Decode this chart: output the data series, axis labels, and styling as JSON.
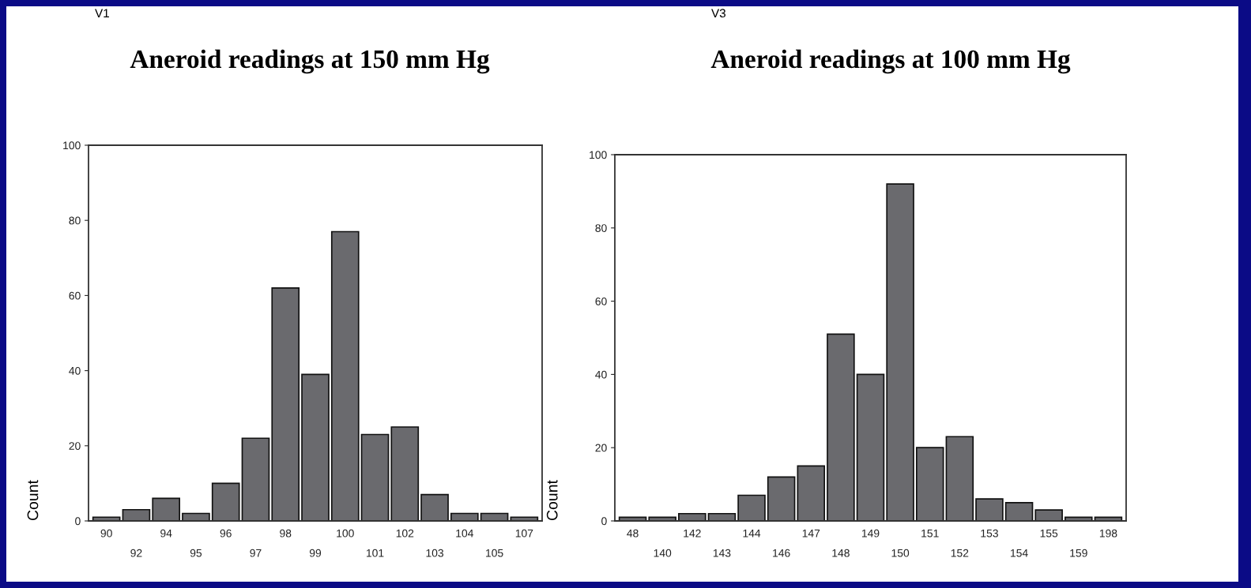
{
  "chart_data": [
    {
      "type": "bar",
      "title": "Aneroid readings at 150 mm Hg",
      "annotations": [
        "V1"
      ],
      "ylabel": "Count",
      "color": "#6a6a6e",
      "categories": [
        "90",
        "92",
        "94",
        "95",
        "96",
        "97",
        "98",
        "99",
        "100",
        "101",
        "102",
        "103",
        "104",
        "105",
        "107"
      ],
      "values": [
        1,
        3,
        6,
        2,
        10,
        22,
        62,
        39,
        77,
        23,
        25,
        7,
        2,
        2,
        1
      ],
      "ylim": [
        0,
        100
      ],
      "yticks": [
        0,
        20,
        40,
        60,
        80,
        100
      ],
      "grid": false,
      "legend": false
    },
    {
      "type": "bar",
      "title": "Aneroid readings at 100 mm Hg",
      "annotations": [
        "V3"
      ],
      "ylabel": "Count",
      "color": "#6a6a6e",
      "categories": [
        "48",
        "140",
        "142",
        "143",
        "144",
        "146",
        "147",
        "148",
        "149",
        "150",
        "151",
        "152",
        "153",
        "154",
        "155",
        "159",
        "198"
      ],
      "values": [
        1,
        1,
        2,
        2,
        7,
        12,
        15,
        51,
        40,
        92,
        20,
        23,
        6,
        5,
        3,
        1,
        1
      ],
      "ylim": [
        0,
        100
      ],
      "yticks": [
        0,
        20,
        40,
        60,
        80,
        100
      ],
      "grid": false,
      "legend": false
    }
  ]
}
